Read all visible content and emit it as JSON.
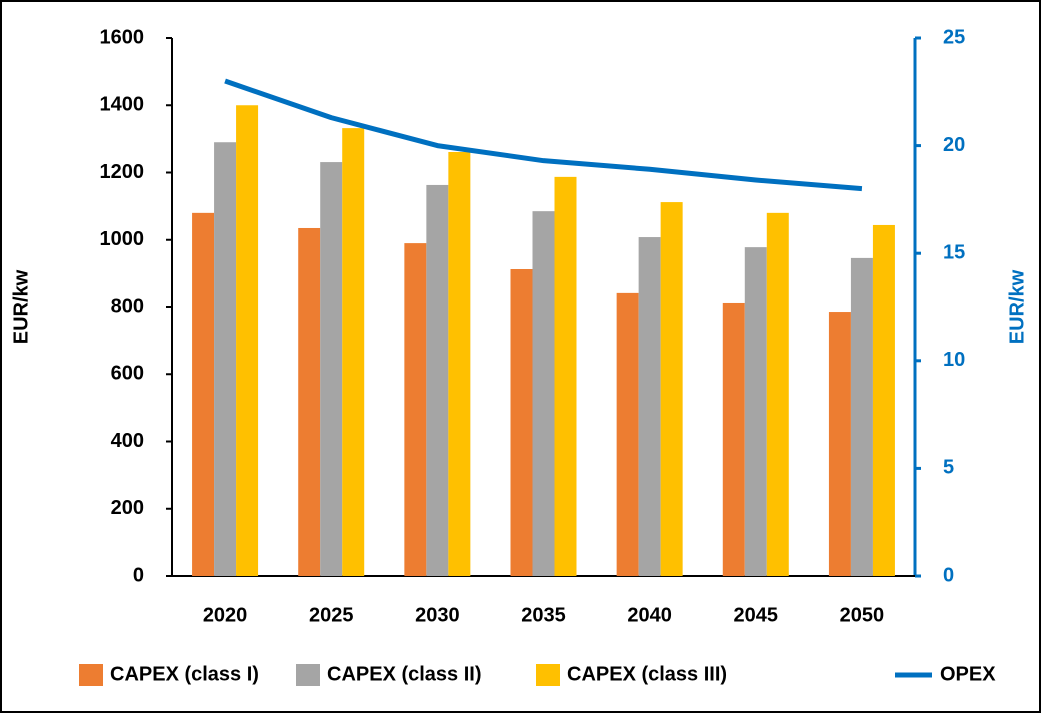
{
  "chart_data": {
    "type": "bar",
    "categories": [
      "2020",
      "2025",
      "2030",
      "2035",
      "2040",
      "2045",
      "2050"
    ],
    "series": [
      {
        "name": "CAPEX (class I)",
        "color": "#ed7d31",
        "values": [
          1080,
          1035,
          990,
          913,
          842,
          812,
          785
        ]
      },
      {
        "name": "CAPEX (class II)",
        "color": "#a5a5a5",
        "values": [
          1290,
          1231,
          1163,
          1085,
          1008,
          978,
          946
        ]
      },
      {
        "name": "CAPEX (class III)",
        "color": "#ffc000",
        "values": [
          1400,
          1332,
          1261,
          1187,
          1112,
          1080,
          1044
        ]
      },
      {
        "name": "OPEX",
        "color": "#0070c0",
        "axis": "y2",
        "type": "line",
        "values": [
          23.0,
          21.3,
          20.0,
          19.3,
          18.9,
          18.4,
          18.0
        ]
      }
    ],
    "ylabel": "EUR/kw",
    "y2label": "EUR/kw",
    "ylim": [
      0,
      1600
    ],
    "yticks": [
      0,
      200,
      400,
      600,
      800,
      1000,
      1200,
      1400,
      1600
    ],
    "y2lim": [
      0,
      25
    ],
    "y2ticks": [
      0,
      5,
      10,
      15,
      20,
      25
    ],
    "legend": "bottom"
  }
}
